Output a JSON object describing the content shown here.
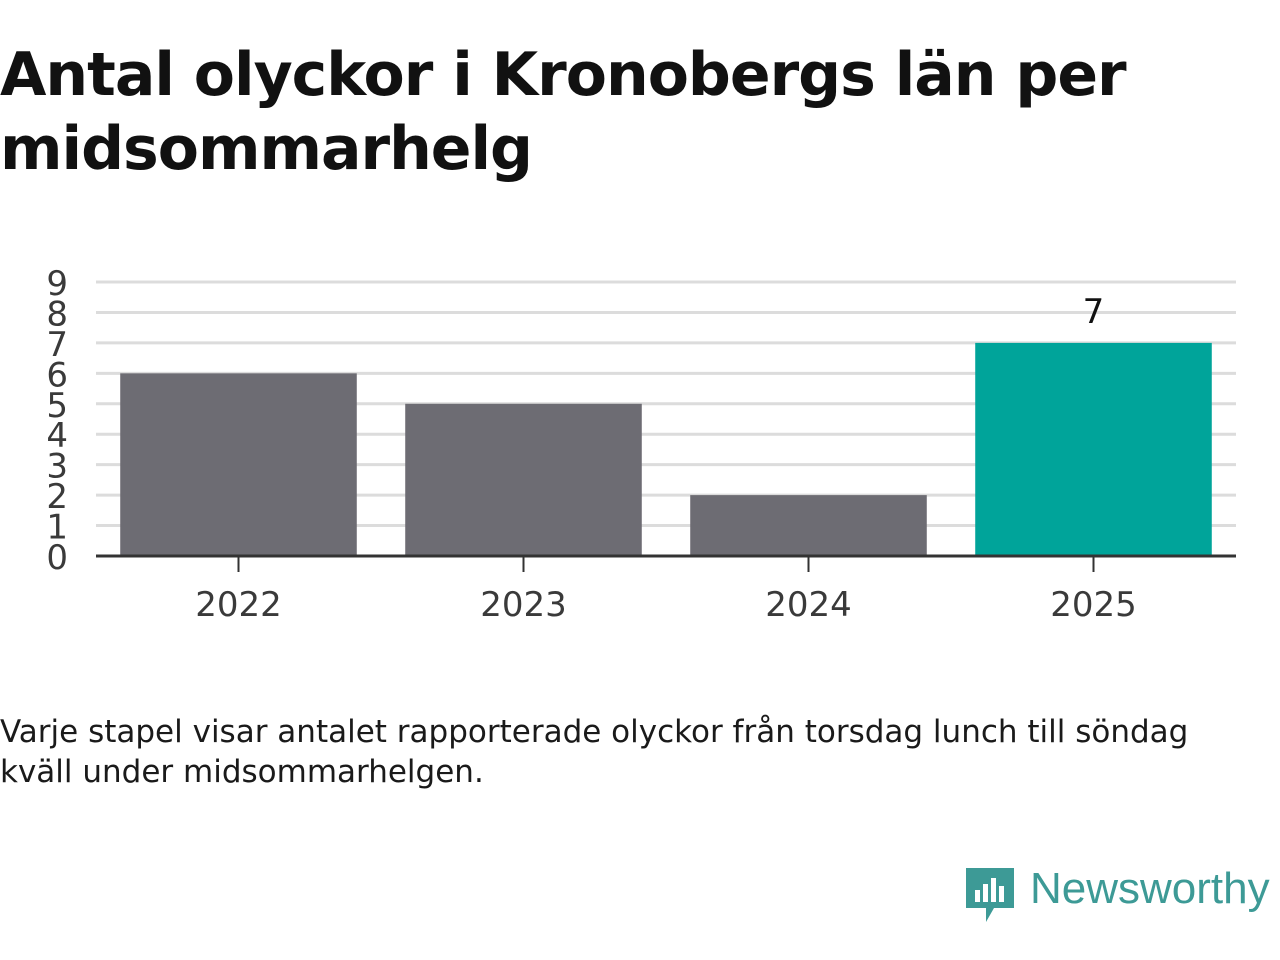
{
  "chart_data": {
    "type": "bar",
    "title": "Antal olyckor i Kronobergs län per midsommarhelg",
    "categories": [
      "2022",
      "2023",
      "2024",
      "2025"
    ],
    "values": [
      6,
      5,
      2,
      7
    ],
    "highlight_index": 3,
    "data_labels": [
      null,
      null,
      null,
      "7"
    ],
    "ylim": [
      0,
      9
    ],
    "yticks": [
      0,
      1,
      2,
      3,
      4,
      5,
      6,
      7,
      8,
      9
    ],
    "grid": true,
    "colors": {
      "bar": "#6d6c73",
      "highlight": "#00a49a",
      "grid": "#dcdcdc",
      "axis": "#333333",
      "tick_text": "#3a3a3a"
    }
  },
  "note": "Varje stapel visar antalet rapporterade olyckor från torsdag lunch till söndag kväll under midsommarhelgen.",
  "brand": {
    "name": "Newsworthy",
    "icon": "newsworthy-logo-icon",
    "color": "#3d9a96"
  }
}
